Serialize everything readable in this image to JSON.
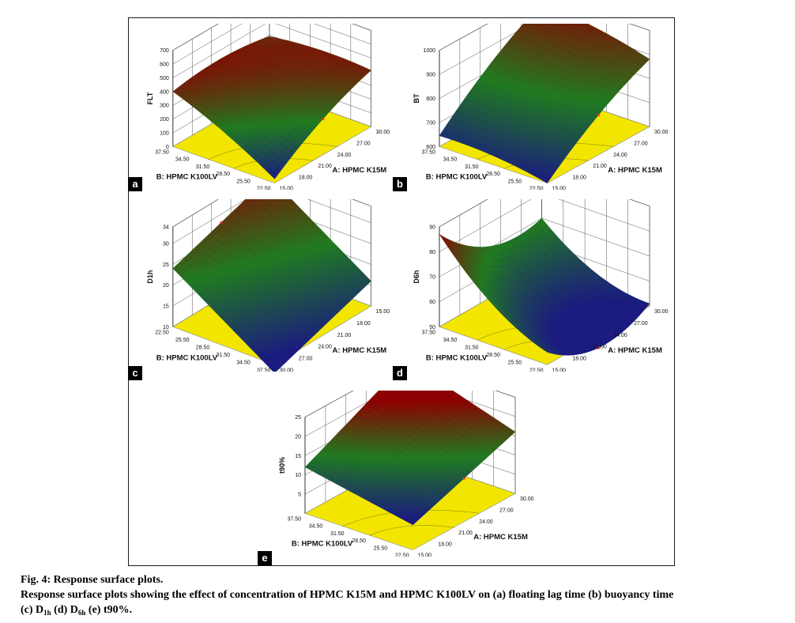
{
  "caption": {
    "title": "Fig. 4: Response surface plots.",
    "line2": "Response surface plots showing the effect of concentration of HPMC K15M and HPMC K100LV on (a) floating lag time (b) buoyancy time",
    "line3_prefix": "(c) D",
    "line3_sub1": "1h",
    "line3_mid": " (d) D",
    "line3_sub2": "6h",
    "line3_suffix": " (e) t90%."
  },
  "colors": {
    "floor": "#f2e600",
    "high": "#8b0000",
    "mid": "#1f7a1f",
    "low": "#1a1a80",
    "grid": "#555555"
  },
  "chart_data": [
    {
      "panel": "a",
      "type": "surface3d",
      "title": "",
      "zlabel": "FLT",
      "xlabel": "A: HPMC K15M",
      "ylabel": "B: HPMC K100LV",
      "x_ticks": [
        "15.00",
        "18.00",
        "21.00",
        "24.00",
        "27.00",
        "30.00"
      ],
      "y_ticks": [
        "22.50",
        "25.50",
        "28.50",
        "31.50",
        "34.50",
        "37.50"
      ],
      "z_ticks": [
        "0",
        "100",
        "200",
        "300",
        "400",
        "500",
        "600",
        "700"
      ],
      "xlim": [
        15,
        30
      ],
      "ylim": [
        22.5,
        37.5
      ],
      "zlim": [
        0,
        700
      ],
      "color_range": [
        30,
        470
      ],
      "corner_values": {
        "x15_y22.5": 30,
        "x30_y22.5": 410,
        "x15_y37.5": 400,
        "x30_y37.5": 390
      },
      "curvature": 40
    },
    {
      "panel": "b",
      "type": "surface3d",
      "title": "",
      "zlabel": "BT",
      "xlabel": "A: HPMC K15M",
      "ylabel": "B: HPMC K100LV",
      "x_ticks": [
        "15.00",
        "18.00",
        "21.00",
        "24.00",
        "27.00",
        "30.00"
      ],
      "y_ticks": [
        "22.50",
        "25.50",
        "28.50",
        "31.50",
        "34.50",
        "37.50"
      ],
      "z_ticks": [
        "600",
        "700",
        "800",
        "900",
        "1000"
      ],
      "xlim": [
        15,
        30
      ],
      "ylim": [
        22.5,
        37.5
      ],
      "zlim": [
        600,
        1000
      ],
      "color_range": [
        600,
        990
      ],
      "corner_values": {
        "x15_y22.5": 600,
        "x30_y22.5": 880,
        "x15_y37.5": 645,
        "x30_y37.5": 960
      },
      "curvature": 25
    },
    {
      "panel": "c",
      "type": "surface3d",
      "title": "",
      "zlabel": "D1h",
      "xlabel": "A: HPMC K15M",
      "ylabel": "B: HPMC K100LV",
      "x_ticks": [
        "15.00",
        "18.00",
        "21.00",
        "24.00",
        "27.00",
        "30.00"
      ],
      "y_ticks": [
        "22.50",
        "25.50",
        "28.50",
        "31.50",
        "34.50",
        "37.50"
      ],
      "z_ticks": [
        "10",
        "15",
        "20",
        "25",
        "30",
        "34"
      ],
      "xlim": [
        15,
        30
      ],
      "ylim": [
        22.5,
        37.5
      ],
      "zlim": [
        10,
        34
      ],
      "color_range": [
        10,
        34
      ],
      "corner_values": {
        "x15_y22.5": 32,
        "x30_y22.5": 24,
        "x15_y37.5": 16,
        "x30_y37.5": 8
      },
      "curvature": 0
    },
    {
      "panel": "d",
      "type": "surface3d",
      "title": "",
      "zlabel": "D6h",
      "xlabel": "A: HPMC K15M",
      "ylabel": "B: HPMC K100LV",
      "x_ticks": [
        "15.00",
        "18.00",
        "21.00",
        "24.00",
        "27.00",
        "30.00"
      ],
      "y_ticks": [
        "22.50",
        "25.50",
        "28.50",
        "31.50",
        "34.50",
        "37.50"
      ],
      "z_ticks": [
        "50",
        "60",
        "70",
        "80",
        "90"
      ],
      "xlim": [
        15,
        30
      ],
      "ylim": [
        22.5,
        37.5
      ],
      "zlim": [
        50,
        90
      ],
      "color_range": [
        50,
        88
      ],
      "corner_values": {
        "x15_y22.5": 55,
        "x30_y22.5": 51,
        "x15_y37.5": 87,
        "x30_y37.5": 70
      },
      "curvature": -8
    },
    {
      "panel": "e",
      "type": "surface3d",
      "title": "",
      "zlabel": "t90%",
      "xlabel": "A: HPMC K15M",
      "ylabel": "B: HPMC K100LV",
      "x_ticks": [
        "15.00",
        "18.00",
        "21.00",
        "24.00",
        "27.00",
        "30.00"
      ],
      "y_ticks": [
        "22.50",
        "25.50",
        "28.50",
        "31.50",
        "34.50",
        "37.50"
      ],
      "z_ticks": [
        "5",
        "10",
        "15",
        "20",
        "25"
      ],
      "xlim": [
        15,
        30
      ],
      "ylim": [
        22.5,
        37.5
      ],
      "zlim": [
        0,
        25
      ],
      "color_range": [
        7,
        20
      ],
      "corner_values": {
        "x15_y22.5": 6.5,
        "x30_y22.5": 16,
        "x15_y37.5": 12,
        "x30_y37.5": 25
      },
      "curvature": 0
    }
  ]
}
